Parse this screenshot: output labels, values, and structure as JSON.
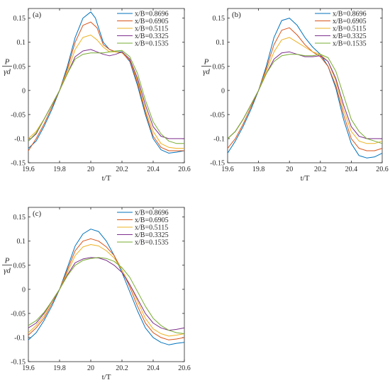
{
  "figure": {
    "xlabel": "t/T",
    "ylabel_numerator": "P",
    "ylabel_denominator": "γd"
  },
  "colors": {
    "x/B=0.8696": "#0072BD",
    "x/B=0.6905": "#D95319",
    "x/B=0.5115": "#EDB120",
    "x/B=0.3325": "#7E2F8E",
    "x/B=0.1535": "#77AC30"
  },
  "chart_data": [
    {
      "type": "line",
      "panel_label": "(a)",
      "xlim": [
        19.6,
        20.6
      ],
      "ylim": [
        -0.15,
        0.17
      ],
      "xticks": [
        19.6,
        19.8,
        20,
        20.2,
        20.4,
        20.6
      ],
      "yticks": [
        -0.15,
        -0.1,
        -0.05,
        0,
        0.05,
        0.1,
        0.15
      ],
      "ytick_labels": [
        "-0.15",
        "-0.1",
        "-0.05",
        "0",
        "0.05",
        "0.1",
        "0.15"
      ],
      "xtick_labels": [
        "19.6",
        "19.8",
        "20",
        "20.2",
        "20.4",
        "20.6"
      ],
      "legend_position": "top-right",
      "series": [
        {
          "name": "x/B=0.8696",
          "x": [
            19.6,
            19.65,
            19.7,
            19.75,
            19.8,
            19.85,
            19.9,
            19.95,
            20.0,
            20.03,
            20.08,
            20.12,
            20.16,
            20.2,
            20.25,
            20.3,
            20.35,
            20.4,
            20.45,
            20.5,
            20.55,
            20.6
          ],
          "y": [
            -0.12,
            -0.105,
            -0.075,
            -0.04,
            0.0,
            0.05,
            0.11,
            0.15,
            0.163,
            0.15,
            0.1,
            0.085,
            0.08,
            0.08,
            0.06,
            0.01,
            -0.05,
            -0.1,
            -0.123,
            -0.13,
            -0.128,
            -0.125
          ]
        },
        {
          "name": "x/B=0.6905",
          "x": [
            19.6,
            19.65,
            19.7,
            19.75,
            19.8,
            19.85,
            19.9,
            19.95,
            20.0,
            20.04,
            20.08,
            20.12,
            20.16,
            20.2,
            20.25,
            20.3,
            20.35,
            20.4,
            20.45,
            20.5,
            20.55,
            20.6
          ],
          "y": [
            -0.125,
            -0.1,
            -0.07,
            -0.035,
            0.0,
            0.045,
            0.1,
            0.135,
            0.142,
            0.13,
            0.095,
            0.085,
            0.08,
            0.078,
            0.062,
            0.015,
            -0.045,
            -0.095,
            -0.118,
            -0.125,
            -0.125,
            -0.125
          ]
        },
        {
          "name": "x/B=0.5115",
          "x": [
            19.6,
            19.65,
            19.7,
            19.75,
            19.8,
            19.85,
            19.9,
            19.95,
            20.0,
            20.04,
            20.08,
            20.12,
            20.16,
            20.2,
            20.25,
            20.3,
            20.35,
            20.4,
            20.45,
            20.5,
            20.55,
            20.6
          ],
          "y": [
            -0.1,
            -0.085,
            -0.06,
            -0.03,
            0.0,
            0.04,
            0.085,
            0.11,
            0.115,
            0.105,
            0.09,
            0.08,
            0.08,
            0.078,
            0.065,
            0.02,
            -0.04,
            -0.085,
            -0.11,
            -0.118,
            -0.12,
            -0.12
          ]
        },
        {
          "name": "x/B=0.3325",
          "x": [
            19.6,
            19.65,
            19.7,
            19.75,
            19.8,
            19.85,
            19.9,
            19.95,
            20.0,
            20.04,
            20.08,
            20.12,
            20.16,
            20.2,
            20.25,
            20.3,
            20.35,
            20.4,
            20.45,
            20.5,
            20.55,
            20.6
          ],
          "y": [
            -0.105,
            -0.09,
            -0.06,
            -0.03,
            0.0,
            0.035,
            0.07,
            0.082,
            0.085,
            0.08,
            0.075,
            0.072,
            0.075,
            0.08,
            0.065,
            0.025,
            -0.03,
            -0.075,
            -0.095,
            -0.1,
            -0.1,
            -0.1
          ]
        },
        {
          "name": "x/B=0.1535",
          "x": [
            19.6,
            19.65,
            19.7,
            19.75,
            19.8,
            19.85,
            19.9,
            19.95,
            20.0,
            20.04,
            20.08,
            20.12,
            20.16,
            20.2,
            20.25,
            20.3,
            20.35,
            20.4,
            20.45,
            20.5,
            20.55,
            20.6
          ],
          "y": [
            -0.105,
            -0.088,
            -0.06,
            -0.03,
            0.0,
            0.035,
            0.065,
            0.075,
            0.078,
            0.078,
            0.078,
            0.08,
            0.082,
            0.083,
            0.07,
            0.035,
            -0.02,
            -0.065,
            -0.09,
            -0.105,
            -0.11,
            -0.11
          ]
        }
      ]
    },
    {
      "type": "line",
      "panel_label": "(b)",
      "xlim": [
        19.6,
        20.6
      ],
      "ylim": [
        -0.15,
        0.17
      ],
      "xticks": [
        19.6,
        19.8,
        20,
        20.2,
        20.4,
        20.6
      ],
      "yticks": [
        -0.15,
        -0.1,
        -0.05,
        0,
        0.05,
        0.1,
        0.15
      ],
      "ytick_labels": [
        "-0.15",
        "-0.1",
        "-0.05",
        "0",
        "0.05",
        "0.1",
        "0.15"
      ],
      "xtick_labels": [
        "19.6",
        "19.8",
        "20",
        "20.2",
        "20.4",
        "20.6"
      ],
      "legend_position": "top-right",
      "series": [
        {
          "name": "x/B=0.8696",
          "x": [
            19.6,
            19.65,
            19.7,
            19.75,
            19.8,
            19.85,
            19.9,
            19.95,
            20.0,
            20.05,
            20.1,
            20.15,
            20.2,
            20.25,
            20.3,
            20.35,
            20.4,
            20.45,
            20.5,
            20.55,
            20.6
          ],
          "y": [
            -0.13,
            -0.105,
            -0.075,
            -0.04,
            0.0,
            0.05,
            0.11,
            0.145,
            0.15,
            0.135,
            0.11,
            0.09,
            0.075,
            0.05,
            0.005,
            -0.06,
            -0.11,
            -0.135,
            -0.14,
            -0.138,
            -0.13
          ]
        },
        {
          "name": "x/B=0.6905",
          "x": [
            19.6,
            19.65,
            19.7,
            19.75,
            19.8,
            19.85,
            19.9,
            19.95,
            20.0,
            20.05,
            20.1,
            20.15,
            20.2,
            20.25,
            20.3,
            20.35,
            20.4,
            20.45,
            20.5,
            20.55,
            20.6
          ],
          "y": [
            -0.12,
            -0.1,
            -0.07,
            -0.035,
            0.0,
            0.045,
            0.095,
            0.125,
            0.13,
            0.115,
            0.095,
            0.08,
            0.07,
            0.05,
            0.01,
            -0.05,
            -0.1,
            -0.12,
            -0.125,
            -0.125,
            -0.12
          ]
        },
        {
          "name": "x/B=0.5115",
          "x": [
            19.6,
            19.65,
            19.7,
            19.75,
            19.8,
            19.85,
            19.9,
            19.95,
            20.0,
            20.05,
            20.1,
            20.15,
            20.2,
            20.25,
            20.3,
            20.35,
            20.4,
            20.45,
            20.5,
            20.55,
            20.6
          ],
          "y": [
            -0.1,
            -0.085,
            -0.06,
            -0.03,
            0.0,
            0.04,
            0.08,
            0.105,
            0.11,
            0.1,
            0.09,
            0.08,
            0.075,
            0.06,
            0.02,
            -0.04,
            -0.085,
            -0.105,
            -0.11,
            -0.11,
            -0.105
          ]
        },
        {
          "name": "x/B=0.3325",
          "x": [
            19.6,
            19.65,
            19.7,
            19.75,
            19.8,
            19.85,
            19.9,
            19.95,
            20.0,
            20.05,
            20.1,
            20.15,
            20.2,
            20.25,
            20.3,
            20.35,
            20.4,
            20.45,
            20.5,
            20.55,
            20.6
          ],
          "y": [
            -0.1,
            -0.085,
            -0.06,
            -0.03,
            0.0,
            0.035,
            0.065,
            0.078,
            0.08,
            0.075,
            0.07,
            0.07,
            0.072,
            0.06,
            0.025,
            -0.03,
            -0.075,
            -0.095,
            -0.1,
            -0.1,
            -0.1
          ]
        },
        {
          "name": "x/B=0.1535",
          "x": [
            19.6,
            19.65,
            19.7,
            19.75,
            19.8,
            19.85,
            19.9,
            19.95,
            20.0,
            20.05,
            20.1,
            20.15,
            20.2,
            20.25,
            20.3,
            20.35,
            20.4,
            20.45,
            20.5,
            20.55,
            20.6
          ],
          "y": [
            -0.1,
            -0.085,
            -0.06,
            -0.03,
            0.0,
            0.035,
            0.06,
            0.072,
            0.075,
            0.075,
            0.072,
            0.072,
            0.075,
            0.068,
            0.04,
            -0.01,
            -0.06,
            -0.085,
            -0.1,
            -0.105,
            -0.11
          ]
        }
      ]
    },
    {
      "type": "line",
      "panel_label": "(c)",
      "xlim": [
        19.6,
        20.6
      ],
      "ylim": [
        -0.15,
        0.17
      ],
      "xticks": [
        19.6,
        19.8,
        20,
        20.2,
        20.4,
        20.6
      ],
      "yticks": [
        -0.15,
        -0.1,
        -0.05,
        0,
        0.05,
        0.1,
        0.15
      ],
      "ytick_labels": [
        "-0.15",
        "-0.1",
        "-0.05",
        "0",
        "0.05",
        "0.1",
        "0.15"
      ],
      "xtick_labels": [
        "19.6",
        "19.8",
        "20",
        "20.2",
        "20.4",
        "20.6"
      ],
      "legend_position": "top-right",
      "series": [
        {
          "name": "x/B=0.8696",
          "x": [
            19.6,
            19.65,
            19.7,
            19.75,
            19.8,
            19.85,
            19.9,
            19.95,
            20.0,
            20.05,
            20.1,
            20.15,
            20.2,
            20.25,
            20.3,
            20.35,
            20.4,
            20.45,
            20.5,
            20.55,
            20.6
          ],
          "y": [
            -0.105,
            -0.09,
            -0.065,
            -0.035,
            0.0,
            0.045,
            0.09,
            0.115,
            0.125,
            0.12,
            0.1,
            0.07,
            0.035,
            -0.005,
            -0.045,
            -0.08,
            -0.1,
            -0.11,
            -0.115,
            -0.112,
            -0.11
          ]
        },
        {
          "name": "x/B=0.6905",
          "x": [
            19.6,
            19.65,
            19.7,
            19.75,
            19.8,
            19.85,
            19.9,
            19.95,
            20.0,
            20.05,
            20.1,
            20.15,
            20.2,
            20.25,
            20.3,
            20.35,
            20.4,
            20.45,
            20.5,
            20.55,
            20.6
          ],
          "y": [
            -0.095,
            -0.08,
            -0.06,
            -0.03,
            0.0,
            0.04,
            0.08,
            0.1,
            0.105,
            0.1,
            0.088,
            0.07,
            0.04,
            0.005,
            -0.035,
            -0.07,
            -0.09,
            -0.1,
            -0.105,
            -0.103,
            -0.1
          ]
        },
        {
          "name": "x/B=0.5115",
          "x": [
            19.6,
            19.65,
            19.7,
            19.75,
            19.8,
            19.85,
            19.9,
            19.95,
            20.0,
            20.05,
            20.1,
            20.15,
            20.2,
            20.25,
            20.3,
            20.35,
            20.4,
            20.45,
            20.5,
            20.55,
            20.6
          ],
          "y": [
            -0.09,
            -0.075,
            -0.055,
            -0.025,
            0.0,
            0.035,
            0.07,
            0.088,
            0.093,
            0.09,
            0.08,
            0.065,
            0.04,
            0.01,
            -0.025,
            -0.06,
            -0.082,
            -0.092,
            -0.097,
            -0.095,
            -0.092
          ]
        },
        {
          "name": "x/B=0.3325",
          "x": [
            19.6,
            19.65,
            19.7,
            19.75,
            19.8,
            19.85,
            19.9,
            19.95,
            20.0,
            20.05,
            20.1,
            20.15,
            20.2,
            20.25,
            20.3,
            20.35,
            20.4,
            20.45,
            20.5,
            20.55,
            20.6
          ],
          "y": [
            -0.08,
            -0.07,
            -0.05,
            -0.025,
            0.0,
            0.03,
            0.055,
            0.063,
            0.066,
            0.065,
            0.06,
            0.05,
            0.035,
            0.01,
            -0.02,
            -0.05,
            -0.07,
            -0.08,
            -0.085,
            -0.083,
            -0.08
          ]
        },
        {
          "name": "x/B=0.1535",
          "x": [
            19.6,
            19.65,
            19.7,
            19.75,
            19.8,
            19.85,
            19.9,
            19.95,
            20.0,
            20.05,
            20.1,
            20.15,
            20.2,
            20.25,
            20.3,
            20.35,
            20.4,
            20.45,
            20.5,
            20.55,
            20.6
          ],
          "y": [
            -0.075,
            -0.065,
            -0.048,
            -0.025,
            0.0,
            0.028,
            0.05,
            0.06,
            0.064,
            0.066,
            0.064,
            0.058,
            0.045,
            0.025,
            -0.005,
            -0.035,
            -0.06,
            -0.075,
            -0.085,
            -0.09,
            -0.092
          ]
        }
      ]
    }
  ]
}
